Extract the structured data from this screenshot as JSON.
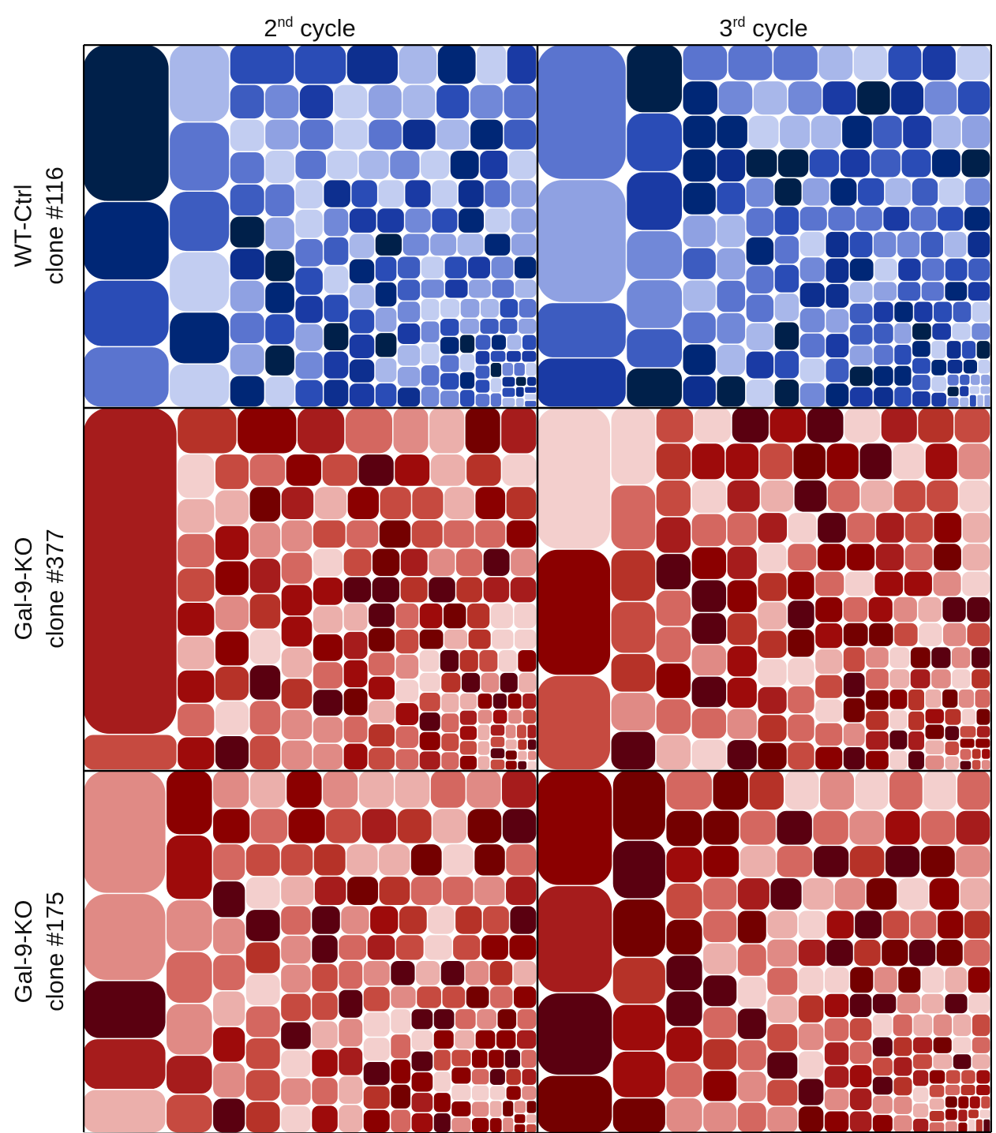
{
  "chart_data": {
    "type": "treemap",
    "columns": [
      {
        "base": "2",
        "sup": "nd",
        "rest": " cycle"
      },
      {
        "base": "3",
        "sup": "rd",
        "rest": " cycle"
      }
    ],
    "rows": [
      {
        "line1": "WT-Ctrl",
        "line2": "clone #116",
        "hue": "blue"
      },
      {
        "line1": "Gal-9-KO",
        "line2": "clone #377",
        "hue": "red"
      },
      {
        "line1": "Gal-9-KO",
        "line2": "clone #175",
        "hue": "red"
      }
    ],
    "palettes": {
      "blue": [
        "#002776",
        "#0d2f8f",
        "#1a3aa4",
        "#2a4cb6",
        "#3d5cc0",
        "#5a74cf",
        "#7188d8",
        "#8fa1e2",
        "#a8b7ea",
        "#c2cdf1",
        "#00204a"
      ],
      "red": [
        "#8b0000",
        "#9e0b0b",
        "#a61c1c",
        "#b63228",
        "#c64a40",
        "#d46760",
        "#e08a85",
        "#ebafab",
        "#f3cfcd",
        "#5a0010",
        "#740000"
      ]
    },
    "panels": [
      {
        "row": 0,
        "col": 0,
        "seed": 116,
        "large_values": [
          26,
          13,
          11,
          10,
          9,
          8,
          7,
          7,
          6,
          5,
          5,
          4,
          4,
          3,
          3
        ]
      },
      {
        "row": 0,
        "col": 1,
        "seed": 216,
        "large_values": [
          22,
          20,
          9,
          8,
          7,
          6,
          6,
          5,
          5,
          4,
          4,
          3,
          3,
          3
        ]
      },
      {
        "row": 1,
        "col": 0,
        "seed": 377,
        "large_values": [
          55,
          6,
          5,
          5,
          4,
          4,
          3,
          3,
          3,
          3,
          3
        ]
      },
      {
        "row": 1,
        "col": 1,
        "seed": 477,
        "large_values": [
          18,
          16,
          12,
          6,
          5,
          4,
          4,
          3,
          3,
          3
        ]
      },
      {
        "row": 2,
        "col": 0,
        "seed": 175,
        "large_values": [
          17,
          12,
          8,
          7,
          6,
          5,
          5,
          4,
          4,
          4,
          3,
          3
        ]
      },
      {
        "row": 2,
        "col": 1,
        "seed": 275,
        "large_values": [
          14,
          13,
          10,
          7,
          6,
          5,
          5,
          4,
          4,
          4,
          3,
          3
        ]
      }
    ]
  }
}
